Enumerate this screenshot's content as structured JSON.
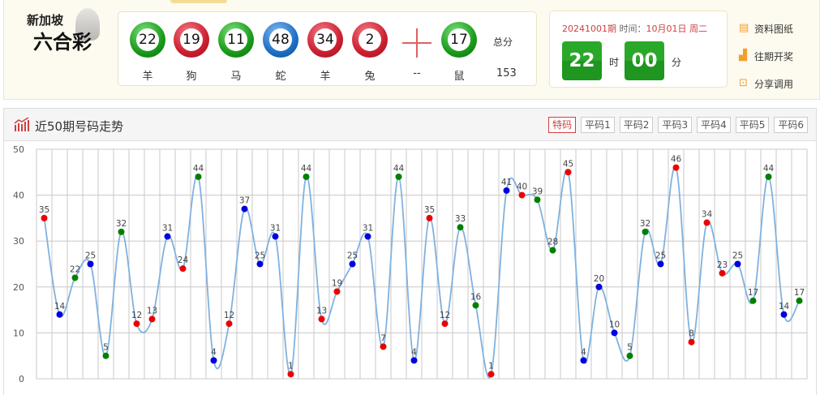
{
  "logo": {
    "line1": "新加坡",
    "line2": "六合彩"
  },
  "draw": {
    "balls": [
      {
        "num": "22",
        "zodiac": "羊",
        "color": "green"
      },
      {
        "num": "19",
        "zodiac": "狗",
        "color": "red"
      },
      {
        "num": "11",
        "zodiac": "马",
        "color": "green"
      },
      {
        "num": "48",
        "zodiac": "蛇",
        "color": "blue"
      },
      {
        "num": "34",
        "zodiac": "羊",
        "color": "red"
      },
      {
        "num": "2",
        "zodiac": "兔",
        "color": "red"
      }
    ],
    "plus_label": "--",
    "special": {
      "num": "17",
      "zodiac": "鼠",
      "color": "green"
    },
    "total_label": "总分",
    "total": "153"
  },
  "time": {
    "period": "20241001期",
    "time_label": "时间：",
    "date": "10月01日 周二",
    "hour": "22",
    "hour_unit": "时",
    "minute": "00",
    "minute_unit": "分"
  },
  "links": [
    {
      "label": "资料图纸",
      "icon": "calendar-icon"
    },
    {
      "label": "往期开奖",
      "icon": "bar-chart-icon"
    },
    {
      "label": "分享调用",
      "icon": "share-screen-icon"
    }
  ],
  "panel": {
    "title": "近50期号码走势",
    "tabs": [
      "特码",
      "平码1",
      "平码2",
      "平码3",
      "平码4",
      "平码5",
      "平码6"
    ],
    "active_tab": 0
  },
  "colors": {
    "red": "#ee0000",
    "blue": "#0000dd",
    "green": "#008000",
    "line": "#7fb2e0"
  },
  "chart_data": {
    "type": "line",
    "smooth": true,
    "grid": true,
    "ylim": [
      0,
      50
    ],
    "yticks": [
      "0",
      "10",
      "20",
      "30",
      "40",
      "50"
    ],
    "values": [
      35,
      14,
      22,
      25,
      5,
      32,
      12,
      13,
      31,
      24,
      44,
      4,
      12,
      37,
      25,
      31,
      1,
      44,
      13,
      19,
      25,
      31,
      7,
      44,
      4,
      35,
      12,
      33,
      16,
      1,
      41,
      40,
      39,
      28,
      45,
      4,
      20,
      10,
      5,
      32,
      25,
      46,
      8,
      34,
      23,
      25,
      17,
      44,
      14,
      17
    ],
    "point_colors": [
      "red",
      "blue",
      "green",
      "blue",
      "green",
      "green",
      "red",
      "red",
      "blue",
      "red",
      "green",
      "blue",
      "red",
      "blue",
      "blue",
      "blue",
      "red",
      "green",
      "red",
      "red",
      "blue",
      "blue",
      "red",
      "green",
      "blue",
      "red",
      "red",
      "green",
      "green",
      "red",
      "blue",
      "red",
      "green",
      "green",
      "red",
      "blue",
      "blue",
      "blue",
      "green",
      "green",
      "blue",
      "red",
      "red",
      "red",
      "red",
      "blue",
      "green",
      "green",
      "blue",
      "green"
    ]
  }
}
